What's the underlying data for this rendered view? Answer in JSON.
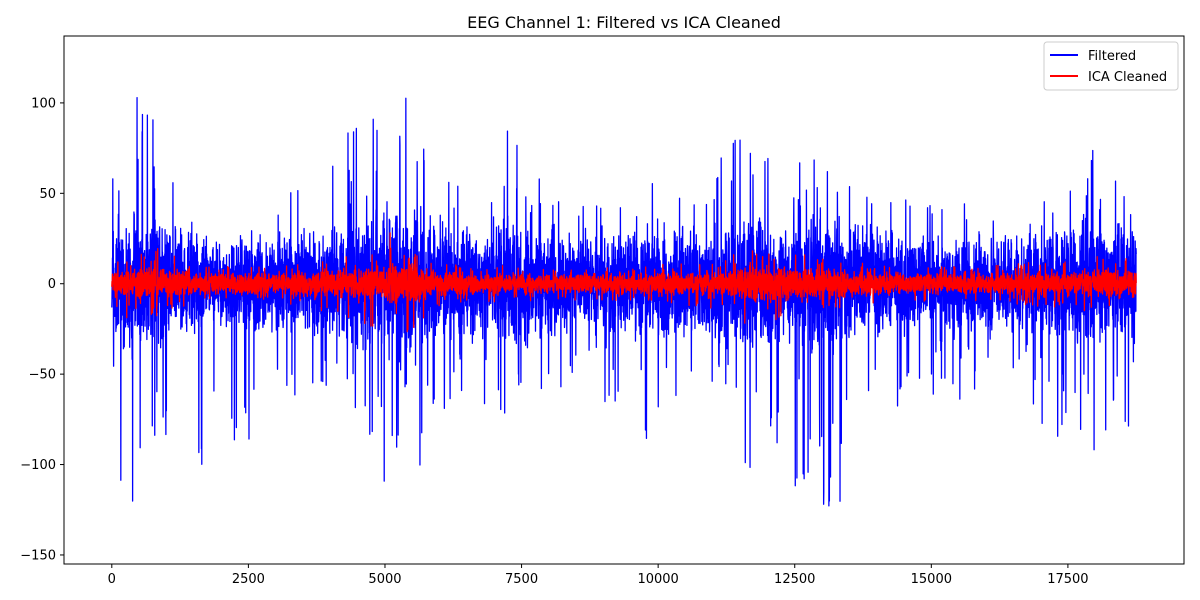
{
  "chart_data": {
    "type": "line",
    "title": "EEG Channel 1: Filtered vs ICA Cleaned",
    "xlabel": "",
    "ylabel": "",
    "xlim": [
      -875,
      19625
    ],
    "ylim": [
      -155,
      137
    ],
    "xticks": [
      0,
      2500,
      5000,
      7500,
      10000,
      12500,
      15000,
      17500
    ],
    "xtick_labels": [
      "0",
      "2500",
      "5000",
      "7500",
      "10000",
      "12500",
      "15000",
      "17500"
    ],
    "yticks": [
      -150,
      -100,
      -50,
      0,
      50,
      100
    ],
    "ytick_labels": [
      "−150",
      "−100",
      "−50",
      "0",
      "50",
      "100"
    ],
    "n_samples": 18750,
    "legend_position": "upper right",
    "series": [
      {
        "name": "Filtered",
        "color": "#0000ff",
        "envelope_x": [
          0,
          200,
          600,
          1000,
          1500,
          2300,
          3000,
          3700,
          4500,
          5000,
          5500,
          6000,
          7000,
          7300,
          8000,
          9000,
          10000,
          11000,
          11500,
          12000,
          12700,
          12850,
          13500,
          14500,
          15500,
          16500,
          17000,
          17700,
          18200,
          18750
        ],
        "envelope_max": [
          60,
          72,
          124,
          58,
          50,
          46,
          57,
          51,
          99,
          85,
          115,
          70,
          55,
          92,
          48,
          51,
          63,
          59,
          97,
          75,
          79,
          113,
          60,
          47,
          45,
          42,
          44,
          91,
          60,
          57
        ],
        "envelope_min": [
          -44,
          -140,
          -120,
          -107,
          -113,
          -99,
          -58,
          -78,
          -90,
          -118,
          -113,
          -70,
          -85,
          -65,
          -83,
          -68,
          -102,
          -58,
          -113,
          -105,
          -118,
          -139,
          -117,
          -67,
          -64,
          -58,
          -78,
          -105,
          -85,
          -79
        ],
        "typical_amp": [
          38,
          45,
          42,
          36,
          30,
          28,
          30,
          32,
          42,
          45,
          50,
          40,
          32,
          42,
          30,
          30,
          34,
          32,
          45,
          38,
          38,
          50,
          36,
          30,
          28,
          28,
          30,
          42,
          36,
          34
        ]
      },
      {
        "name": "ICA Cleaned",
        "color": "#ff0000",
        "envelope_x": [
          0,
          200,
          600,
          900,
          1500,
          3000,
          4800,
          5000,
          5300,
          5500,
          5800,
          7000,
          9000,
          11000,
          11400,
          11600,
          12500,
          12900,
          14000,
          16000,
          17500,
          18200,
          18750
        ],
        "envelope_max": [
          10,
          15,
          17,
          22,
          10,
          9,
          18,
          33,
          25,
          23,
          13,
          10,
          9,
          12,
          17,
          22,
          20,
          15,
          11,
          10,
          14,
          18,
          20
        ],
        "envelope_min": [
          -12,
          -26,
          -17,
          -18,
          -10,
          -9,
          -24,
          -18,
          -23,
          -33,
          -13,
          -10,
          -9,
          -14,
          -17,
          -26,
          -18,
          -15,
          -11,
          -10,
          -14,
          -18,
          -15
        ],
        "typical_amp": [
          7,
          9,
          9,
          9,
          7,
          6,
          10,
          12,
          13,
          13,
          8,
          6,
          6,
          7,
          10,
          11,
          10,
          9,
          7,
          6,
          7,
          9,
          9
        ]
      }
    ]
  }
}
